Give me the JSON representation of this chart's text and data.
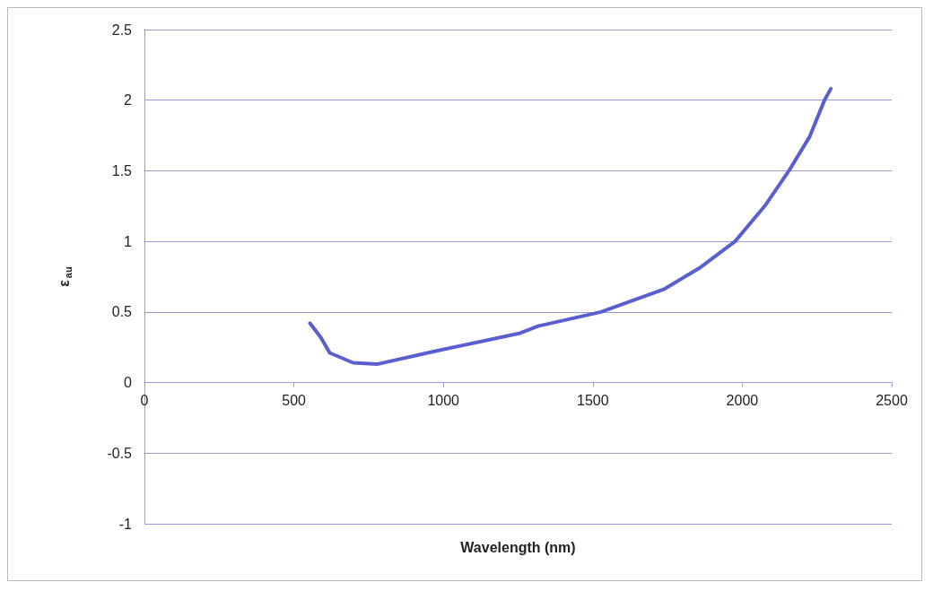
{
  "chart_data": {
    "type": "line",
    "xlabel": "Wavelength (nm)",
    "ylabel": "ε$_{au}$",
    "x": [
      554,
      590,
      620,
      698,
      778,
      967,
      1257,
      1317,
      1527,
      1737,
      1856,
      1976,
      2075,
      2156,
      2225,
      2275,
      2296
    ],
    "series": [
      {
        "color": "#5a5fcf",
        "values": [
          0.42,
          0.32,
          0.21,
          0.14,
          0.13,
          0.22,
          0.35,
          0.4,
          0.5,
          0.66,
          0.81,
          1.0,
          1.25,
          1.5,
          1.74,
          2.0,
          2.08
        ]
      }
    ],
    "xlim": [
      0,
      2500
    ],
    "xticks": [
      0,
      500,
      1000,
      1500,
      2000,
      2500
    ],
    "ylim": [
      -1,
      2.5
    ],
    "yticks": [
      -1,
      -0.5,
      0,
      0.5,
      1,
      1.5,
      2,
      2.5
    ],
    "grid": "y",
    "marker": "none",
    "line_style": "solid"
  }
}
